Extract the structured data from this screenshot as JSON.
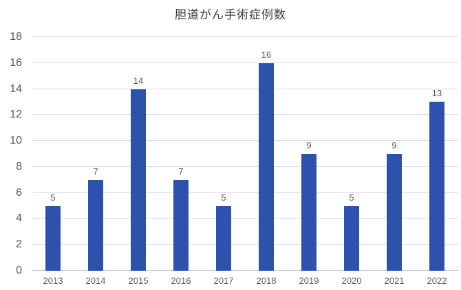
{
  "chart_data": {
    "type": "bar",
    "title": "胆道がん手術症例数",
    "categories": [
      "2013",
      "2014",
      "2015",
      "2016",
      "2017",
      "2018",
      "2019",
      "2020",
      "2021",
      "2022"
    ],
    "values": [
      5,
      7,
      14,
      7,
      5,
      16,
      9,
      5,
      9,
      13
    ],
    "xlabel": "",
    "ylabel": "",
    "ylim": [
      0,
      18
    ],
    "ytick_step": 2,
    "yticks": [
      0,
      2,
      4,
      6,
      8,
      10,
      12,
      14,
      16,
      18
    ],
    "grid": true,
    "legend": false,
    "data_labels": true,
    "colors": {
      "bar": "#2d52ae",
      "gridline": "#dbdbdb",
      "axis_line": "#c6c6c6",
      "tick_label_text": "#595959",
      "title_text": "#3b3b3b",
      "background": "#ffffff"
    }
  }
}
